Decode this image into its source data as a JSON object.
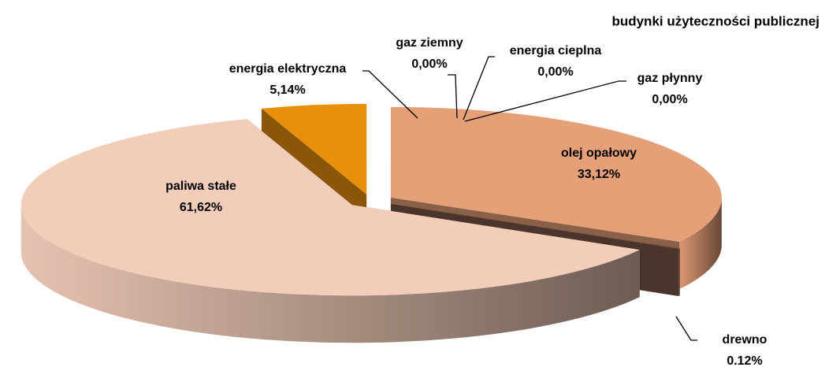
{
  "chart_data": {
    "type": "pie3d",
    "title": "budynki użyteczności publicznej",
    "categories": [
      "energia elektryczna",
      "gaz ziemny",
      "energia cieplna",
      "gaz płynny",
      "olej opałowy",
      "drewno",
      "paliwa stałe"
    ],
    "values": [
      5.14,
      0,
      0,
      0,
      33.12,
      0.12,
      61.62
    ],
    "value_labels": [
      "5,14%",
      "0,00%",
      "0,00%",
      "0,00%",
      "33,12%",
      "0.12%",
      "61,62%"
    ],
    "colors": [
      "#e8900c",
      "#c0504d",
      "#9bbb59",
      "#8064a2",
      "#e6a078",
      "#7b5649",
      "#f2cdb9"
    ]
  }
}
